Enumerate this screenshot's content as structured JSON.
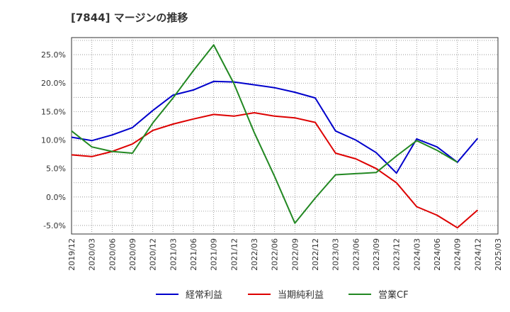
{
  "chart_data": {
    "type": "line",
    "title": "[7844]  マージンの推移",
    "xlabel": "",
    "ylabel": "",
    "x": [
      "2019/12",
      "2020/03",
      "2020/06",
      "2020/09",
      "2020/12",
      "2021/03",
      "2021/06",
      "2021/09",
      "2021/12",
      "2022/03",
      "2022/06",
      "2022/09",
      "2022/12",
      "2023/03",
      "2023/06",
      "2023/09",
      "2023/12",
      "2024/03",
      "2024/06",
      "2024/09",
      "2024/12",
      "2025/03"
    ],
    "ylim": [
      -6.5,
      28
    ],
    "yticks": [
      -5,
      0,
      5,
      10,
      15,
      20,
      25
    ],
    "ytick_labels": [
      "-5.0%",
      "0.0%",
      "5.0%",
      "10.0%",
      "15.0%",
      "20.0%",
      "25.0%"
    ],
    "grid": true,
    "legend_position": "bottom",
    "series": [
      {
        "name": "経常利益",
        "color": "#0000cc",
        "values": [
          10.5,
          9.9,
          10.9,
          12.2,
          15.2,
          17.9,
          18.8,
          20.3,
          20.2,
          19.7,
          19.2,
          18.4,
          17.4,
          11.6,
          10.0,
          7.8,
          4.2,
          10.2,
          8.8,
          6.1,
          10.3,
          null
        ]
      },
      {
        "name": "当期純利益",
        "color": "#dd0000",
        "values": [
          7.4,
          7.1,
          8.0,
          9.3,
          11.7,
          12.8,
          13.7,
          14.5,
          14.2,
          14.8,
          14.2,
          13.9,
          13.1,
          7.7,
          6.7,
          5.0,
          2.5,
          -1.7,
          -3.2,
          -5.4,
          -2.3,
          null
        ]
      },
      {
        "name": "営業CF",
        "color": "#228822",
        "values": [
          11.6,
          8.8,
          8.0,
          7.7,
          13.0,
          17.4,
          22.2,
          26.7,
          19.9,
          11.3,
          3.6,
          -4.6,
          -0.2,
          3.9,
          4.1,
          4.3,
          7.2,
          9.9,
          8.2,
          6.1,
          null,
          null
        ]
      }
    ]
  }
}
